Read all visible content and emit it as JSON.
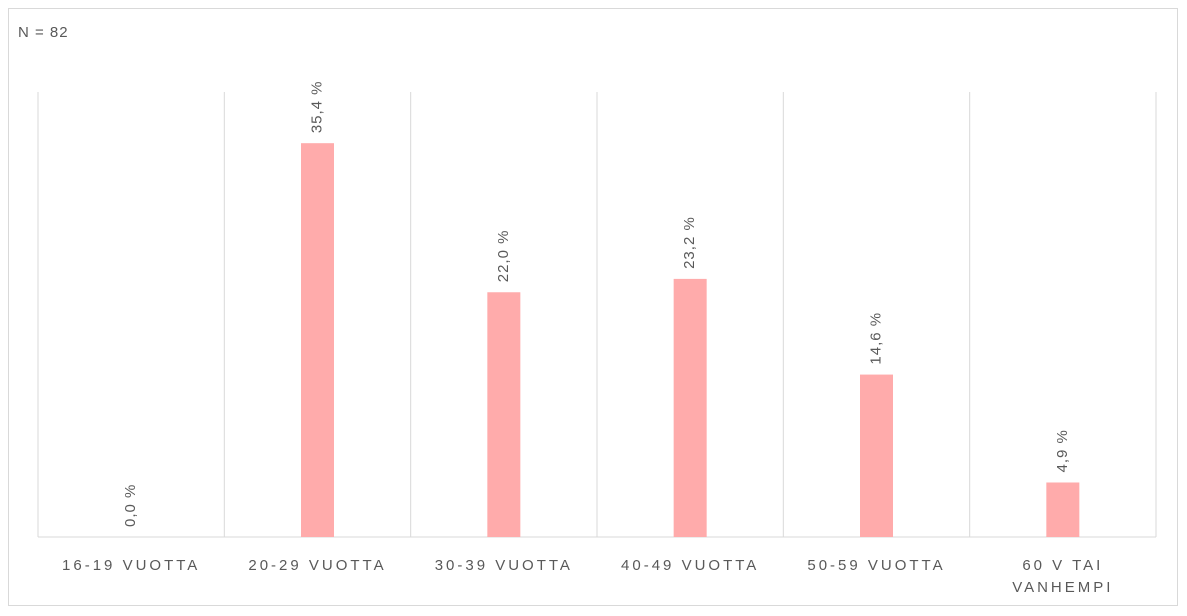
{
  "chart_data": {
    "type": "bar",
    "title": "N = 82",
    "categories": [
      "16-19 VUOTTA",
      "20-29 VUOTTA",
      "30-39 VUOTTA",
      "40-49 VUOTTA",
      "50-59 VUOTTA",
      "60 V TAI VANHEMPI"
    ],
    "values": [
      0.0,
      35.4,
      22.0,
      23.2,
      14.6,
      4.9
    ],
    "value_labels": [
      "0,0 %",
      "35,4 %",
      "22,0 %",
      "23,2 %",
      "14,6 %",
      "4,9 %"
    ],
    "color": "#ffabab",
    "ylim": [
      0,
      40
    ]
  }
}
